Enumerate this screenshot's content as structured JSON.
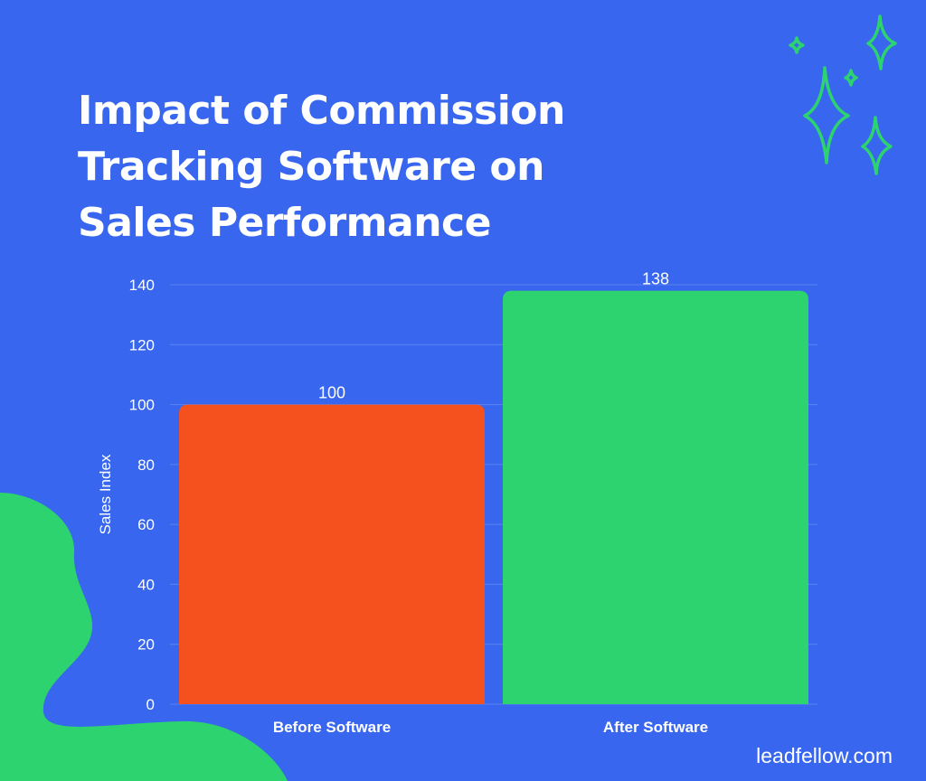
{
  "page": {
    "background": "#3866EE",
    "brand_text": "leadfellow.com",
    "accent_green": "#2DD36F",
    "decoration_icons": [
      "sparkle-icon"
    ]
  },
  "chart_data": {
    "type": "bar",
    "title": "Impact of Commission Tracking Software on Sales Performance",
    "xlabel": "",
    "ylabel": "Sales Index",
    "categories": [
      "Before Software",
      "After Software"
    ],
    "values": [
      100,
      138
    ],
    "data_labels": [
      "100",
      "138"
    ],
    "bar_colors": [
      "#F5511F",
      "#2DD36F"
    ],
    "ylim": [
      0,
      140
    ],
    "yticks": [
      0,
      20,
      40,
      60,
      80,
      100,
      120,
      140
    ],
    "grid": true,
    "legend": "none"
  }
}
